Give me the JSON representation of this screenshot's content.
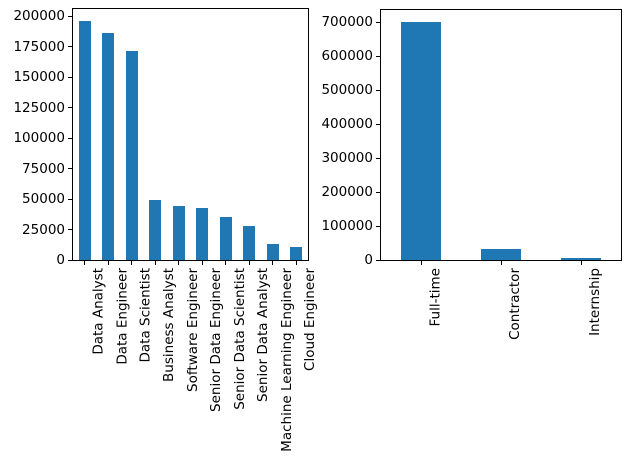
{
  "figure": {
    "background": "#ffffff",
    "spine_color": "#000000",
    "tick_color": "#000000",
    "text_color": "#000000",
    "bar_color": "#1f77b4"
  },
  "chart_data": [
    {
      "type": "bar",
      "name": "job-title-counts",
      "title": "",
      "xlabel": "",
      "ylabel": "",
      "categories": [
        "Data Analyst",
        "Data Engineer",
        "Data Scientist",
        "Business Analyst",
        "Software Engineer",
        "Senior Data Engineer",
        "Senior Data Scientist",
        "Senior Data Analyst",
        "Machine Learning Engineer",
        "Cloud Engineer"
      ],
      "values": [
        196000,
        186000,
        171500,
        49000,
        44500,
        43000,
        35000,
        27500,
        13500,
        11000
      ],
      "yticks": [
        0,
        25000,
        50000,
        75000,
        100000,
        125000,
        150000,
        175000,
        200000
      ],
      "ylim": [
        0,
        205800
      ],
      "bar_color": "#1f77b4",
      "bar_width_fraction": 0.5,
      "x_tick_rotation": 90,
      "grid": false,
      "legend": null
    },
    {
      "type": "bar",
      "name": "employment-type-counts",
      "title": "",
      "xlabel": "",
      "ylabel": "",
      "categories": [
        "Full-time",
        "Contractor",
        "Internship"
      ],
      "values": [
        701000,
        31500,
        7000
      ],
      "yticks": [
        0,
        100000,
        200000,
        300000,
        400000,
        500000,
        600000,
        700000
      ],
      "ylim": [
        0,
        736000
      ],
      "bar_color": "#1f77b4",
      "bar_width_fraction": 0.5,
      "x_tick_rotation": 90,
      "grid": false,
      "legend": null
    }
  ]
}
